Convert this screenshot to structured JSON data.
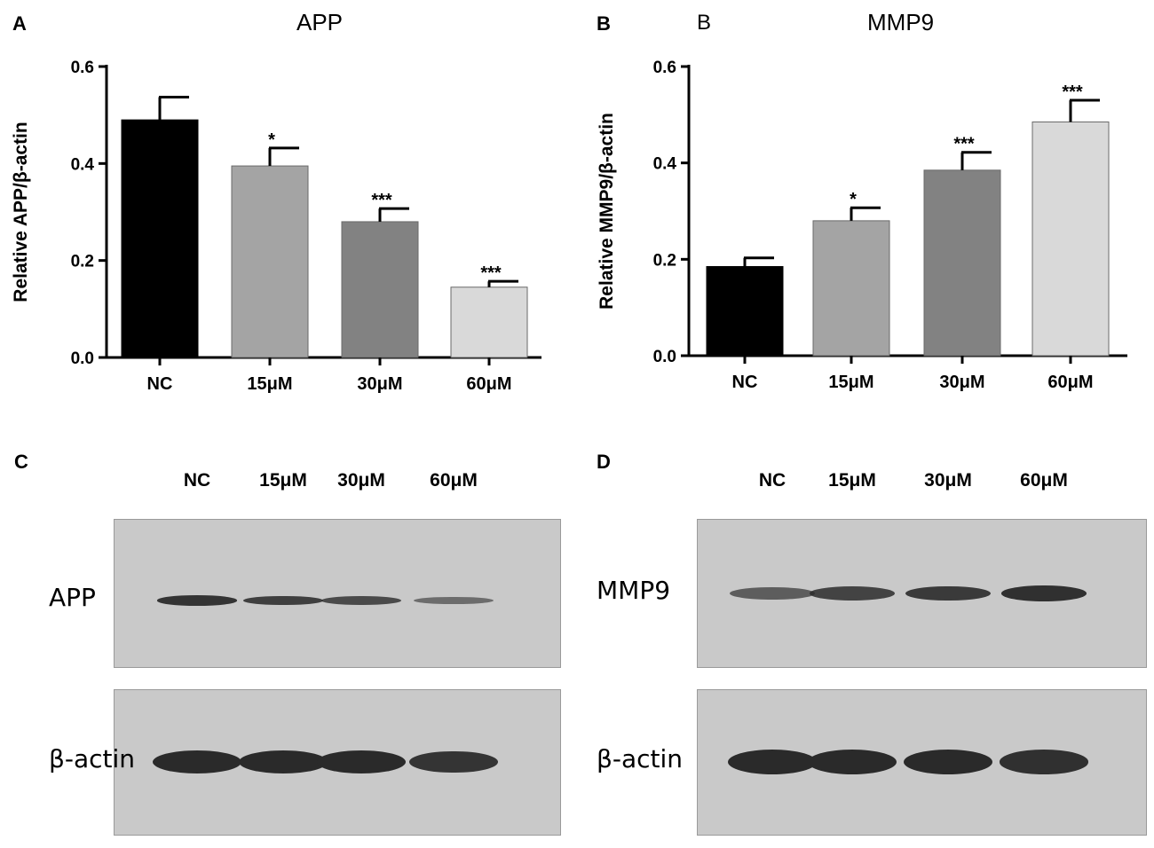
{
  "panels": {
    "A": {
      "letter": "A"
    },
    "B": {
      "letter": "B",
      "sublabel": "B"
    },
    "C": {
      "letter": "C"
    },
    "D": {
      "letter": "D"
    }
  },
  "chart_data": [
    {
      "type": "bar",
      "title": "APP",
      "ylabel": "Relative APP/β-actin",
      "xlabel": "",
      "categories": [
        "NC",
        "15μM",
        "30μM",
        "60μM"
      ],
      "values": [
        0.49,
        0.395,
        0.28,
        0.145
      ],
      "errors": [
        0.047,
        0.037,
        0.027,
        0.012
      ],
      "significance": [
        "",
        "*",
        "***",
        "***"
      ],
      "colors": [
        "#000000",
        "#a4a4a4",
        "#828282",
        "#d9d9d9"
      ],
      "ylim": [
        0,
        0.6
      ],
      "yticks": [
        "0.0",
        "0.2",
        "0.4",
        "0.6"
      ],
      "grid": false
    },
    {
      "type": "bar",
      "title": "MMP9",
      "ylabel": "Relative MMP9/β-actin",
      "xlabel": "",
      "categories": [
        "NC",
        "15μM",
        "30μM",
        "60μM"
      ],
      "values": [
        0.185,
        0.28,
        0.385,
        0.485
      ],
      "errors": [
        0.018,
        0.027,
        0.037,
        0.045
      ],
      "significance": [
        "",
        "*",
        "***",
        "***"
      ],
      "colors": [
        "#000000",
        "#a4a4a4",
        "#828282",
        "#d9d9d9"
      ],
      "ylim": [
        0,
        0.6
      ],
      "yticks": [
        "0.0",
        "0.2",
        "0.4",
        "0.6"
      ],
      "grid": false
    }
  ],
  "blots": {
    "C": {
      "lanes": [
        "NC",
        "15μM",
        "30μM",
        "60μM"
      ],
      "rows": [
        {
          "label": "APP",
          "intensities": [
            0.9,
            0.8,
            0.7,
            0.35
          ]
        },
        {
          "label": "β-actin",
          "intensities": [
            1.0,
            1.0,
            1.0,
            0.9
          ]
        }
      ]
    },
    "D": {
      "lanes": [
        "NC",
        "15μM",
        "30μM",
        "60μM"
      ],
      "rows": [
        {
          "label": "MMP9",
          "intensities": [
            0.5,
            0.75,
            0.85,
            0.95
          ]
        },
        {
          "label": "β-actin",
          "intensities": [
            1.0,
            1.0,
            1.0,
            0.95
          ]
        }
      ]
    }
  }
}
